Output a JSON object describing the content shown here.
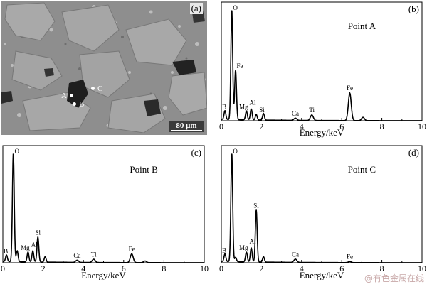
{
  "panel_a": {
    "tag": "(a)",
    "points": [
      {
        "label": "A"
      },
      {
        "label": "B"
      },
      {
        "label": "C"
      }
    ],
    "scale_bar": "80 μm"
  },
  "chart_data": [
    {
      "type": "line",
      "tag": "(b)",
      "title": "Point A",
      "xlabel": "Energy/keV",
      "ylabel": "",
      "xlim": [
        0,
        10
      ],
      "xticks": [
        0,
        2,
        4,
        6,
        8,
        10
      ],
      "peaks": [
        {
          "element": "B",
          "energy": 0.18,
          "height": 0.08
        },
        {
          "element": "O",
          "energy": 0.52,
          "height": 1.0
        },
        {
          "element": "Fe",
          "energy": 0.71,
          "height": 0.45
        },
        {
          "element": "Mg",
          "energy": 1.25,
          "height": 0.08
        },
        {
          "element": "Al",
          "energy": 1.49,
          "height": 0.1
        },
        {
          "element": "Si",
          "energy": 1.74,
          "height": 0.05
        },
        {
          "element": "",
          "energy": 2.1,
          "height": 0.06
        },
        {
          "element": "Ca",
          "energy": 3.69,
          "height": 0.02
        },
        {
          "element": "Ti",
          "energy": 4.51,
          "height": 0.05
        },
        {
          "element": "Fe",
          "energy": 6.4,
          "height": 0.25
        },
        {
          "element": "",
          "energy": 7.06,
          "height": 0.03
        }
      ]
    },
    {
      "type": "line",
      "tag": "(c)",
      "title": "Point B",
      "xlabel": "Energy/keV",
      "ylabel": "",
      "xlim": [
        0,
        10
      ],
      "xticks": [
        0,
        2,
        4,
        6,
        8,
        10
      ],
      "peaks": [
        {
          "element": "B",
          "energy": 0.18,
          "height": 0.06
        },
        {
          "element": "O",
          "energy": 0.52,
          "height": 1.0
        },
        {
          "element": "",
          "energy": 0.71,
          "height": 0.1
        },
        {
          "element": "Mg",
          "energy": 1.25,
          "height": 0.09
        },
        {
          "element": "Al",
          "energy": 1.49,
          "height": 0.1
        },
        {
          "element": "Si",
          "energy": 1.74,
          "height": 0.23
        },
        {
          "element": "",
          "energy": 2.1,
          "height": 0.05
        },
        {
          "element": "Ca",
          "energy": 3.69,
          "height": 0.02
        },
        {
          "element": "Ti",
          "energy": 4.51,
          "height": 0.03
        },
        {
          "element": "Fe",
          "energy": 6.4,
          "height": 0.08
        },
        {
          "element": "",
          "energy": 7.06,
          "height": 0.015
        }
      ]
    },
    {
      "type": "line",
      "tag": "(d)",
      "title": "Point C",
      "xlabel": "Energy/keV",
      "ylabel": "",
      "xlim": [
        0,
        10
      ],
      "xticks": [
        0,
        2,
        4,
        6,
        8,
        10
      ],
      "peaks": [
        {
          "element": "B",
          "energy": 0.18,
          "height": 0.07
        },
        {
          "element": "O",
          "energy": 0.52,
          "height": 1.0
        },
        {
          "element": "",
          "energy": 0.71,
          "height": 0.04
        },
        {
          "element": "Mg",
          "energy": 1.25,
          "height": 0.09
        },
        {
          "element": "Al",
          "energy": 1.49,
          "height": 0.13
        },
        {
          "element": "Si",
          "energy": 1.74,
          "height": 0.48
        },
        {
          "element": "",
          "energy": 2.1,
          "height": 0.05
        },
        {
          "element": "Ca",
          "energy": 3.69,
          "height": 0.03
        },
        {
          "element": "Fe",
          "energy": 6.4,
          "height": 0.01
        }
      ]
    }
  ],
  "watermark": "@有色金属在线"
}
